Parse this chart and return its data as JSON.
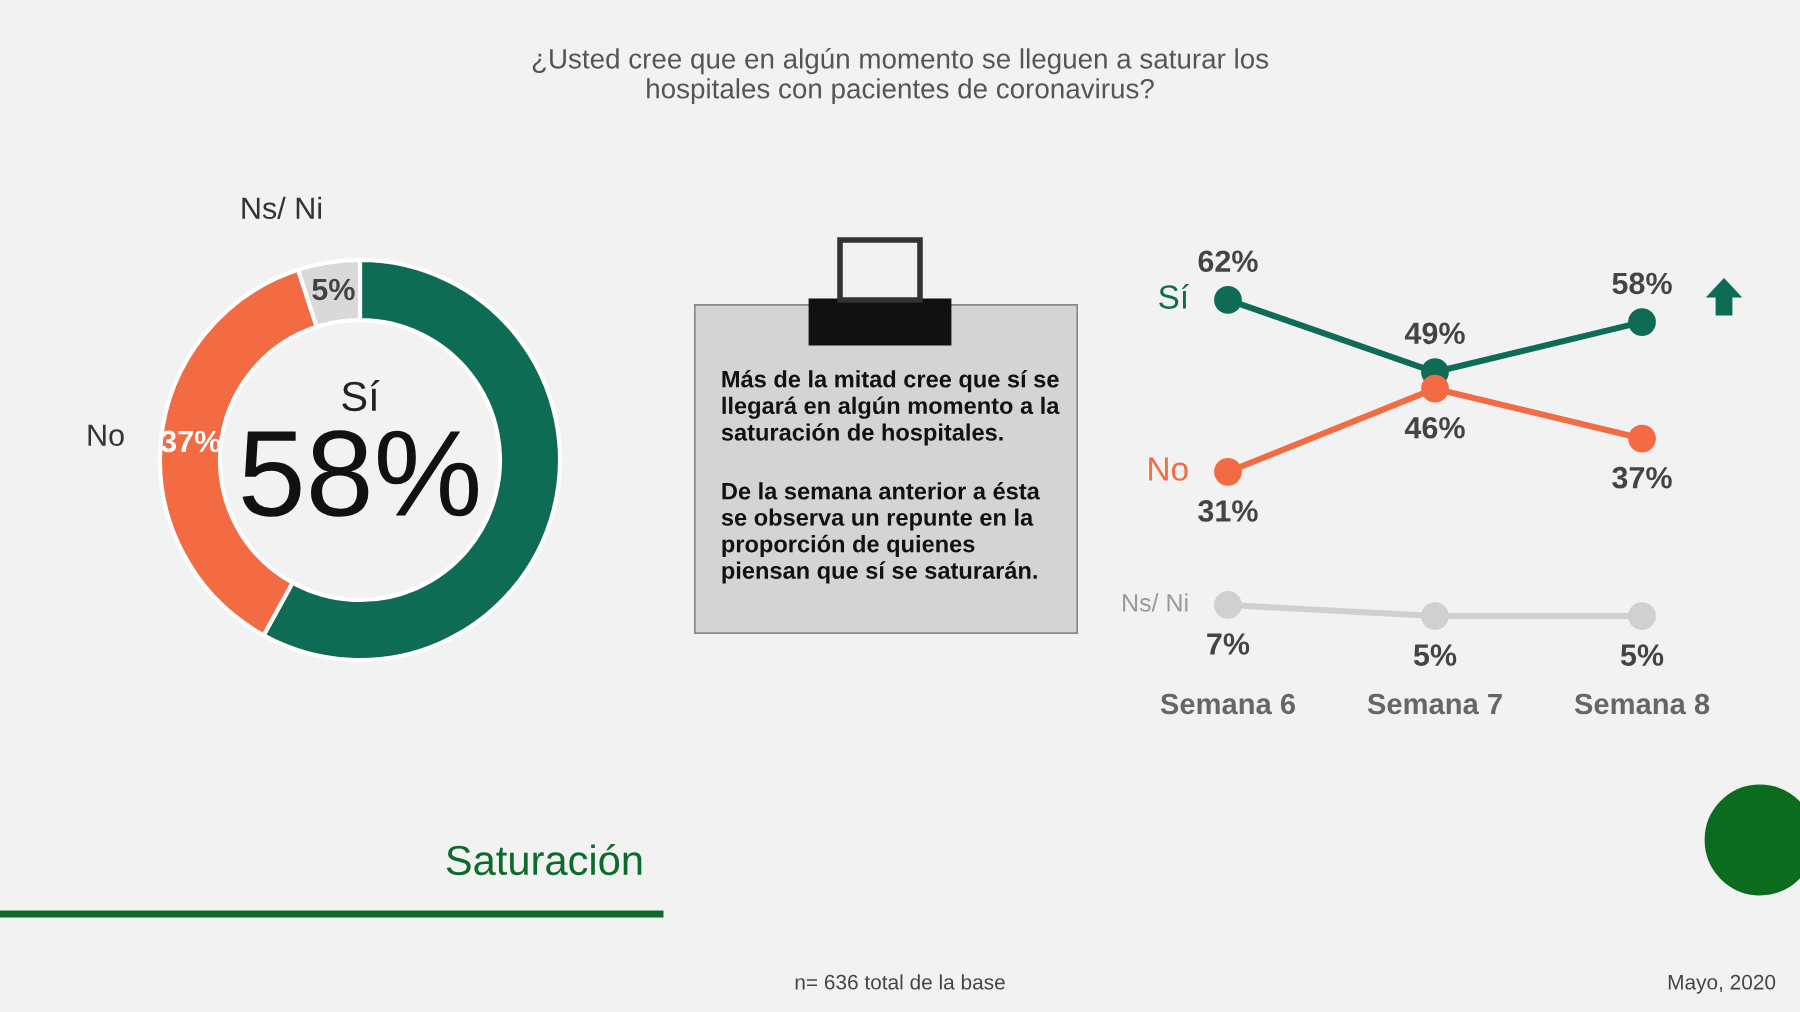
{
  "chart_data": [
    {
      "type": "donut",
      "title": "¿Usted cree que en algún momento se lleguen a saturar los\nhospitales con pacientes de coronavirus?",
      "subtitle": "Saturación",
      "categories": [
        "Sí",
        "No",
        "Ns/ Ni"
      ],
      "values": [
        58,
        37,
        5
      ],
      "value_labels": [
        "58%",
        "37%",
        "5%"
      ],
      "colors": [
        "#0e6b54",
        "#f26b43",
        "#d9d9d9"
      ],
      "annotations": [
        "n= 636 total de la base",
        "Mayo, 2020"
      ]
    },
    {
      "type": "other",
      "annotations": [
        "Más de la mitad cree que sí se\nllegará en algún momento a la\nsaturación de hospitales.",
        "De la semana anterior a ésta\nse observa un repunte en la\nproporción de quienes\npiensan que sí se saturarán."
      ]
    },
    {
      "type": "line",
      "categories": [
        "Semana 6",
        "Semana 7",
        "Semana 8"
      ],
      "marker": "circle",
      "legend": false,
      "grid": false,
      "series": [
        {
          "name": "Sí",
          "color": "#0e6b54",
          "values": [
            62,
            49,
            58
          ],
          "value_labels": [
            "62%",
            "49%",
            "58%"
          ]
        },
        {
          "name": "No",
          "color": "#f26b43",
          "values": [
            31,
            46,
            37
          ],
          "value_labels": [
            "31%",
            "46%",
            "37%"
          ]
        },
        {
          "name": "Ns/ Ni",
          "color": "#d0d0d0",
          "values": [
            7,
            5,
            5
          ],
          "value_labels": [
            "7%",
            "5%",
            "5%"
          ]
        }
      ]
    }
  ]
}
